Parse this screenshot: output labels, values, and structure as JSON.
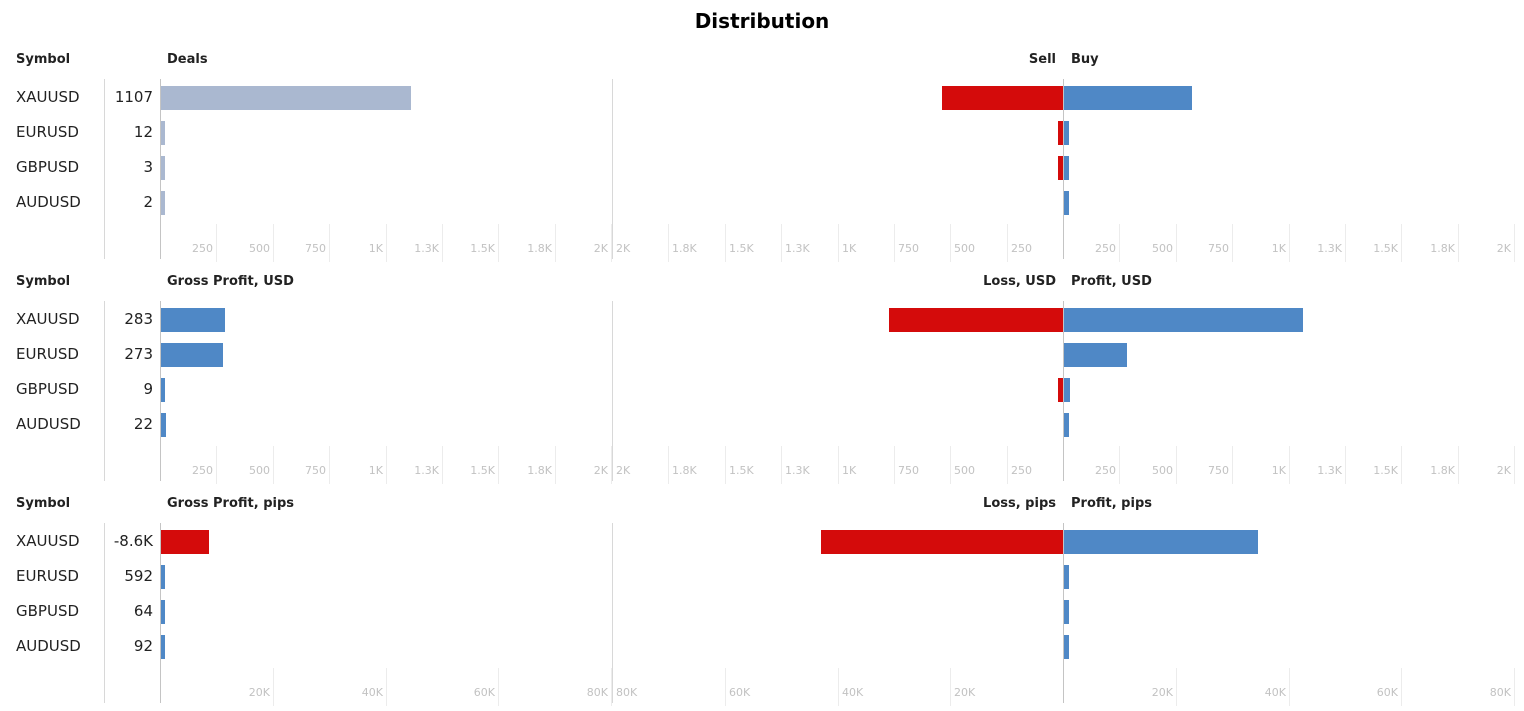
{
  "title": "Distribution",
  "colors": {
    "deals": "#aab8d0",
    "buy": "#4f88c6",
    "sell": "#d40b0b",
    "profit": "#4f88c6",
    "loss": "#d40b0b",
    "grid": "#ececec",
    "tick": "#c2c2c2"
  },
  "chart_data": [
    {
      "type": "bar",
      "symbol_header": "Symbol",
      "left_header": "Deals",
      "neg_header": "Sell",
      "pos_header": "Buy",
      "symbols": [
        "XAUUSD",
        "EURUSD",
        "GBPUSD",
        "AUDUSD"
      ],
      "value_labels": [
        "1107",
        "12",
        "3",
        "2"
      ],
      "left_values": [
        1107,
        12,
        3,
        2
      ],
      "left_color_key": "deals",
      "sell": [
        538,
        12,
        14,
        0
      ],
      "buy": [
        569,
        14,
        12,
        14
      ],
      "axis_max": 2000,
      "left_ticks": [
        "250",
        "500",
        "750",
        "1K",
        "1.3K",
        "1.5K",
        "1.8K",
        "2K"
      ],
      "neg_ticks": [
        "2K",
        "1.8K",
        "1.5K",
        "1.3K",
        "1K",
        "750",
        "500",
        "250"
      ],
      "pos_ticks": [
        "250",
        "500",
        "750",
        "1K",
        "1.3K",
        "1.5K",
        "1.8K",
        "2K"
      ]
    },
    {
      "type": "bar",
      "symbol_header": "Symbol",
      "left_header": "Gross Profit, USD",
      "neg_header": "Loss, USD",
      "pos_header": "Profit, USD",
      "symbols": [
        "XAUUSD",
        "EURUSD",
        "GBPUSD",
        "AUDUSD"
      ],
      "value_labels": [
        "283",
        "273",
        "9",
        "22"
      ],
      "left_values": [
        283,
        273,
        9,
        22
      ],
      "left_color_key": "profit",
      "sell": [
        772,
        0,
        18,
        0
      ],
      "buy": [
        1060,
        280,
        26,
        22
      ],
      "axis_max": 2000,
      "left_ticks": [
        "250",
        "500",
        "750",
        "1K",
        "1.3K",
        "1.5K",
        "1.8K",
        "2K"
      ],
      "neg_ticks": [
        "2K",
        "1.8K",
        "1.5K",
        "1.3K",
        "1K",
        "750",
        "500",
        "250"
      ],
      "pos_ticks": [
        "250",
        "500",
        "750",
        "1K",
        "1.3K",
        "1.5K",
        "1.8K",
        "2K"
      ]
    },
    {
      "type": "bar",
      "symbol_header": "Symbol",
      "left_header": "Gross Profit, pips",
      "neg_header": "Loss, pips",
      "pos_header": "Profit, pips",
      "symbols": [
        "XAUUSD",
        "EURUSD",
        "GBPUSD",
        "AUDUSD"
      ],
      "value_labels": [
        "-8.6K",
        "592",
        "64",
        "92"
      ],
      "left_values": [
        -8600,
        592,
        64,
        92
      ],
      "left_color_key": "profit",
      "sell": [
        43000,
        0,
        0,
        0
      ],
      "buy": [
        34400,
        800,
        800,
        800
      ],
      "axis_max": 80000,
      "left_ticks": [
        "20K",
        "40K",
        "60K",
        "80K"
      ],
      "neg_ticks": [
        "80K",
        "60K",
        "40K",
        "20K"
      ],
      "pos_ticks": [
        "20K",
        "40K",
        "60K",
        "80K"
      ]
    }
  ]
}
